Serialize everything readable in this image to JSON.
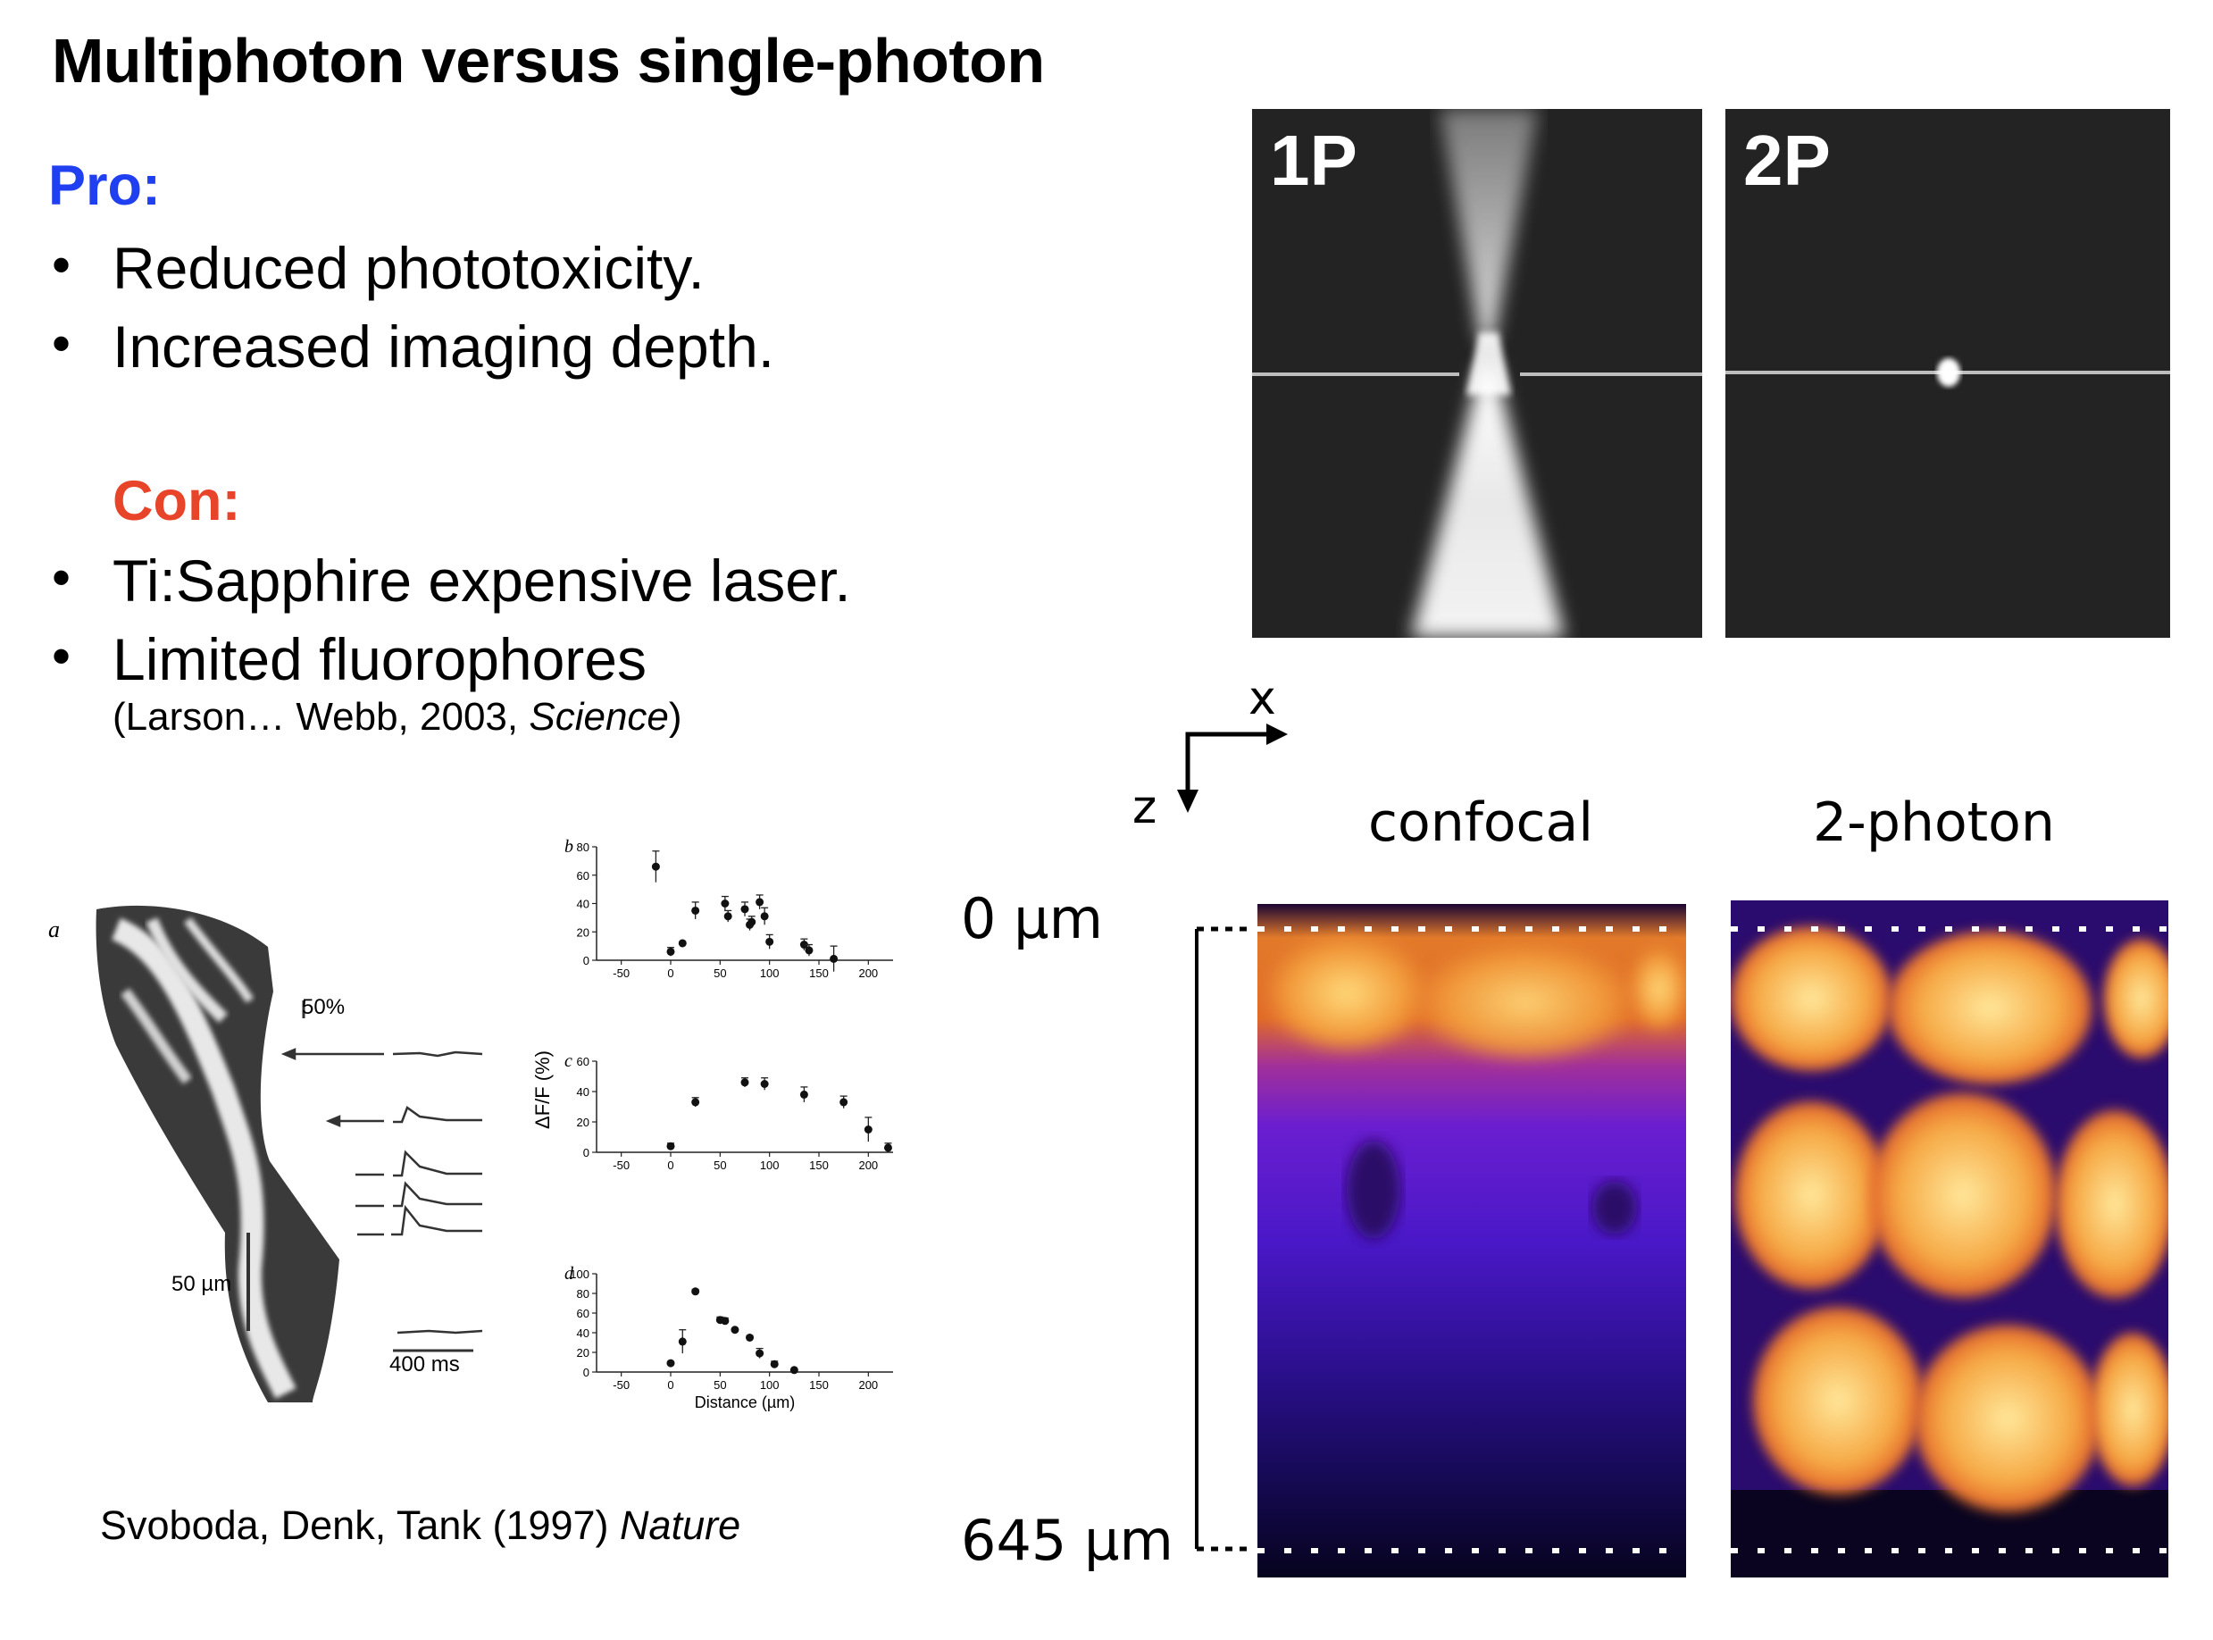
{
  "slide": {
    "title": "Multiphoton versus single-photon",
    "pro_heading": "Pro:",
    "pro_items": [
      "Reduced phototoxicity.",
      "Increased imaging depth."
    ],
    "con_heading": "Con:",
    "con_items": [
      "Ti:Sapphire expensive laser.",
      "Limited fluorophores"
    ],
    "citation1_prefix": "(Larson… Webb, 2003, ",
    "citation1_journal": "Science",
    "citation1_suffix": ")",
    "citation2_prefix": "Svoboda, Denk, Tank (1997) ",
    "citation2_journal": "Nature",
    "bullet_char": "•"
  },
  "excitation_figure": {
    "label_1p": "1P",
    "label_2p": "2P"
  },
  "depth_figure": {
    "axis_x": "x",
    "axis_z": "z",
    "label_confocal": "confocal",
    "label_2photon": "2-photon",
    "depth_top": "0 µm",
    "depth_bottom": "645 µm"
  },
  "svoboda_figure": {
    "panel_a": "a",
    "scale_50pct": "50%",
    "scale_50um": "50 µm",
    "scale_400ms": "400 ms",
    "panel_b": "b",
    "panel_c": "c",
    "panel_d": "d",
    "ylabel": "ΔF/F (%)",
    "xlabel": "Distance (µm)",
    "x_ticks": [
      "-50",
      "0",
      "50",
      "100",
      "150",
      "200"
    ],
    "b_yticks": [
      "0",
      "20",
      "40",
      "60",
      "80"
    ],
    "c_yticks": [
      "0",
      "20",
      "40",
      "60"
    ],
    "d_yticks": [
      "0",
      "20",
      "40",
      "60",
      "80",
      "100"
    ]
  },
  "chart_data": [
    {
      "type": "scatter",
      "title": "b",
      "xlabel": "",
      "ylabel": "ΔF/F (%)",
      "xlim": [
        -75,
        225
      ],
      "ylim": [
        0,
        80
      ],
      "x": [
        -15,
        0,
        12,
        25,
        55,
        58,
        75,
        80,
        82,
        90,
        95,
        100,
        135,
        140,
        165
      ],
      "y": [
        66,
        6,
        12,
        35,
        40,
        31,
        36,
        25,
        27,
        41,
        31,
        13,
        11,
        7,
        1
      ],
      "err": [
        11,
        3,
        1,
        6,
        5,
        4,
        5,
        4,
        4,
        5,
        6,
        5,
        4,
        4,
        9
      ]
    },
    {
      "type": "scatter",
      "title": "c",
      "xlabel": "",
      "ylabel": "ΔF/F (%)",
      "xlim": [
        -75,
        225
      ],
      "ylim": [
        0,
        60
      ],
      "x": [
        0,
        25,
        75,
        95,
        135,
        175,
        200,
        220
      ],
      "y": [
        4,
        33,
        46,
        45,
        38,
        33,
        15,
        3
      ],
      "err": [
        2,
        3,
        3,
        4,
        5,
        4,
        8,
        3
      ]
    },
    {
      "type": "scatter",
      "title": "d",
      "xlabel": "Distance (µm)",
      "ylabel": "ΔF/F (%)",
      "xlim": [
        -75,
        225
      ],
      "ylim": [
        0,
        100
      ],
      "x": [
        0,
        12,
        25,
        50,
        55,
        65,
        80,
        90,
        105,
        125
      ],
      "y": [
        9,
        31,
        82,
        53,
        52,
        43,
        35,
        19,
        8,
        2
      ],
      "err": [
        1,
        12,
        2,
        3,
        3,
        1,
        2,
        5,
        3,
        1
      ]
    }
  ]
}
